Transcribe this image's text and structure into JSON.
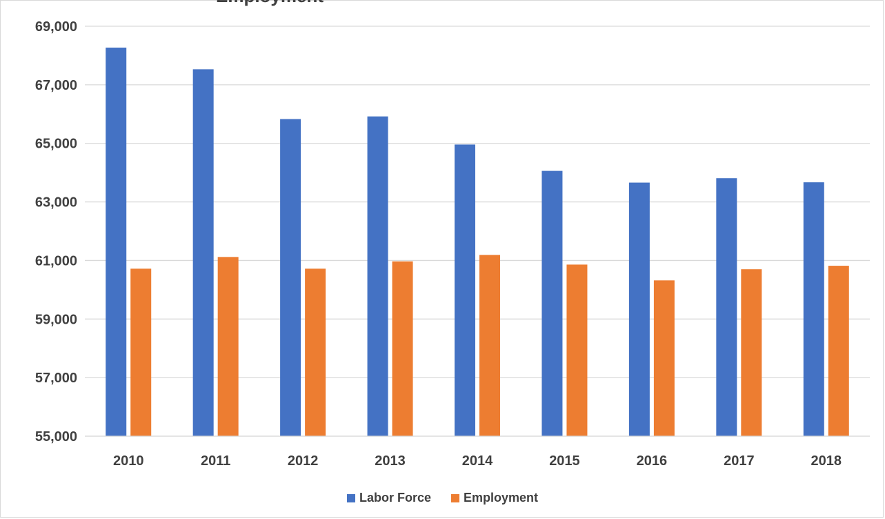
{
  "chart_data": {
    "type": "bar",
    "title": "Employment",
    "categories": [
      "2010",
      "2011",
      "2012",
      "2013",
      "2014",
      "2015",
      "2016",
      "2017",
      "2018"
    ],
    "series": [
      {
        "name": "Labor Force",
        "color": "#4472C4",
        "values": [
          68270,
          67530,
          65830,
          65920,
          64960,
          64060,
          63660,
          63810,
          63670
        ]
      },
      {
        "name": "Employment",
        "color": "#ED7D31",
        "values": [
          60720,
          61120,
          60720,
          60970,
          61190,
          60860,
          60320,
          60700,
          60820
        ]
      }
    ],
    "ylim": [
      55000,
      69000
    ],
    "yticks": [
      "55,000",
      "57,000",
      "59,000",
      "61,000",
      "63,000",
      "65,000",
      "67,000",
      "69,000"
    ],
    "ytick_values": [
      55000,
      57000,
      59000,
      61000,
      63000,
      65000,
      67000,
      69000
    ],
    "grid": true,
    "legend_position": "bottom"
  }
}
